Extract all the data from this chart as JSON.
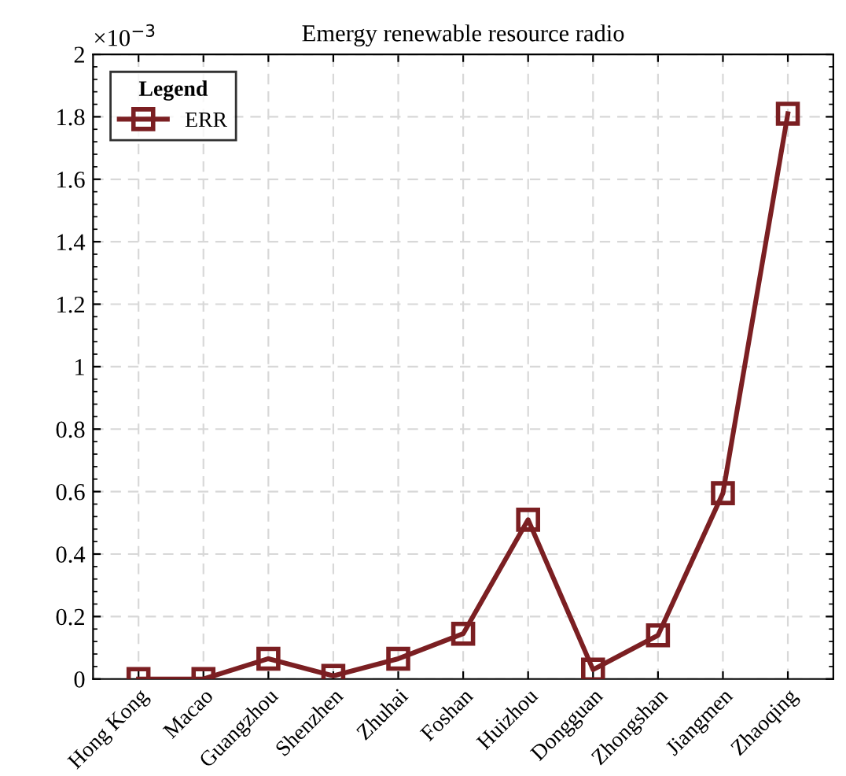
{
  "chart_data": {
    "type": "line",
    "title": "Emergy renewable resource radio",
    "categories": [
      "Hong Kong",
      "Macao",
      "Guangzhou",
      "Shenzhen",
      "Zhuhai",
      "Foshan",
      "Huizhou",
      "Dongguan",
      "Zhongshan",
      "Jiangmen",
      "Zhaoqing"
    ],
    "series": [
      {
        "name": "ERR",
        "color": "#7b1f22",
        "values": [
          0.0,
          0.0,
          0.065,
          0.01,
          0.065,
          0.145,
          0.51,
          0.03,
          0.14,
          0.595,
          1.81
        ]
      }
    ],
    "legend_title": "Legend",
    "annotations": [
      "×10$^{−3}$"
    ],
    "ylim": [
      0,
      2
    ],
    "yticks": [
      0,
      0.2,
      0.4,
      0.6,
      0.8,
      1,
      1.2,
      1.4,
      1.6,
      1.8,
      2
    ],
    "grid": true,
    "legend": "top left",
    "marker": "square",
    "line_style": "solid"
  }
}
